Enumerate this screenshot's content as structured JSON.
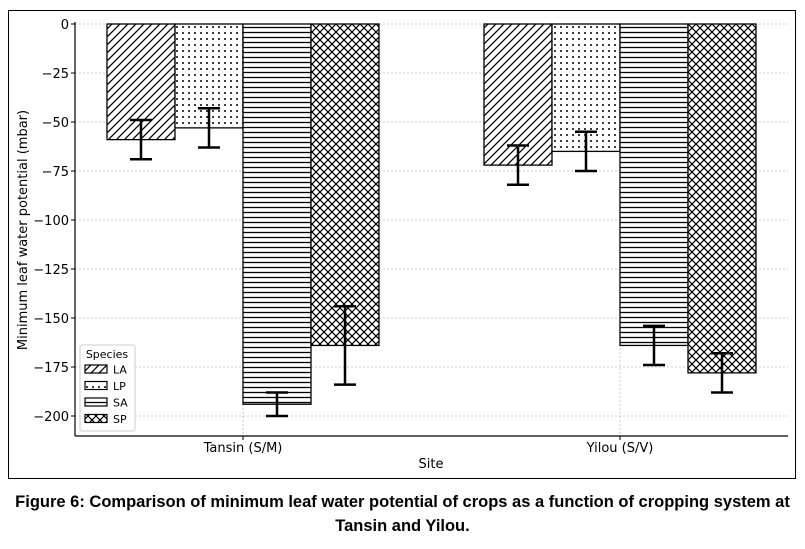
{
  "chart_data": {
    "type": "bar",
    "title": "",
    "xlabel": "Site",
    "ylabel": "Minimum leaf water potential (mbar)",
    "categories": [
      "Tansin (S/M)",
      "Yilou (S/V)"
    ],
    "ylim": [
      -210,
      0
    ],
    "yticks": [
      0,
      -25,
      -50,
      -75,
      -100,
      -125,
      -150,
      -175,
      -200
    ],
    "ytick_labels": [
      "0",
      "−25",
      "−50",
      "−75",
      "−100",
      "−125",
      "−150",
      "−175",
      "−200"
    ],
    "grid": true,
    "legend": {
      "title": "Species",
      "placement": "lower-left"
    },
    "series": [
      {
        "name": "LA",
        "hatch": "diagonal",
        "values": [
          -59,
          -72
        ],
        "errors": [
          10,
          10
        ]
      },
      {
        "name": "LP",
        "hatch": "dots",
        "values": [
          -53,
          -65
        ],
        "errors": [
          10,
          10
        ]
      },
      {
        "name": "SA",
        "hatch": "horizontal",
        "values": [
          -194,
          -164
        ],
        "errors": [
          6,
          10
        ]
      },
      {
        "name": "SP",
        "hatch": "crosshatch",
        "values": [
          -164,
          -178
        ],
        "errors": [
          20,
          10
        ]
      }
    ]
  },
  "caption": "Figure 6: Comparison of minimum leaf water potential of crops as a function of cropping system at Tansin and Yilou."
}
